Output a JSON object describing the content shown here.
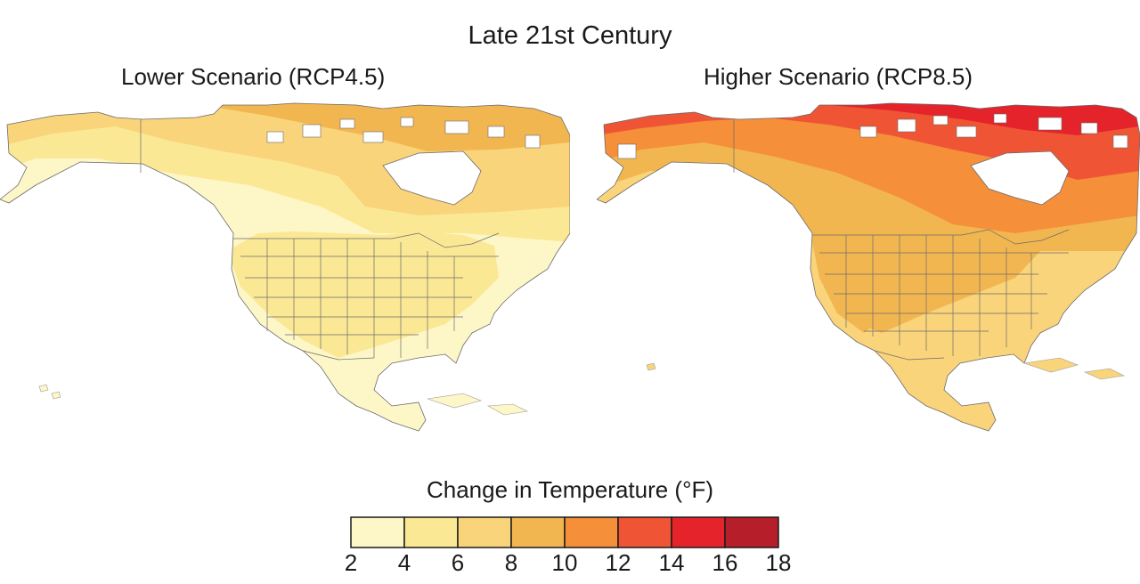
{
  "title": "Late 21st Century",
  "panels": [
    {
      "title": "Lower Scenario (RCP4.5)",
      "scenario": "RCP4.5"
    },
    {
      "title": "Higher Scenario (RCP8.5)",
      "scenario": "RCP8.5"
    }
  ],
  "legend": {
    "title": "Change in Temperature (°F)",
    "ticks": [
      "2",
      "4",
      "6",
      "8",
      "10",
      "12",
      "14",
      "16",
      "18"
    ],
    "bins": [
      {
        "min": 2,
        "max": 4,
        "color": "#fdf6c7"
      },
      {
        "min": 4,
        "max": 6,
        "color": "#fbe895"
      },
      {
        "min": 6,
        "max": 8,
        "color": "#fad47a"
      },
      {
        "min": 8,
        "max": 10,
        "color": "#f2b650"
      },
      {
        "min": 10,
        "max": 12,
        "color": "#f58f39"
      },
      {
        "min": 12,
        "max": 14,
        "color": "#ef5535"
      },
      {
        "min": 14,
        "max": 16,
        "color": "#e4232a"
      },
      {
        "min": 16,
        "max": 18,
        "color": "#b61f2a"
      }
    ]
  },
  "colors": {
    "ocean": "#ffffff",
    "coast": "#c9c9c9",
    "borders": "#6b6b6b"
  }
}
